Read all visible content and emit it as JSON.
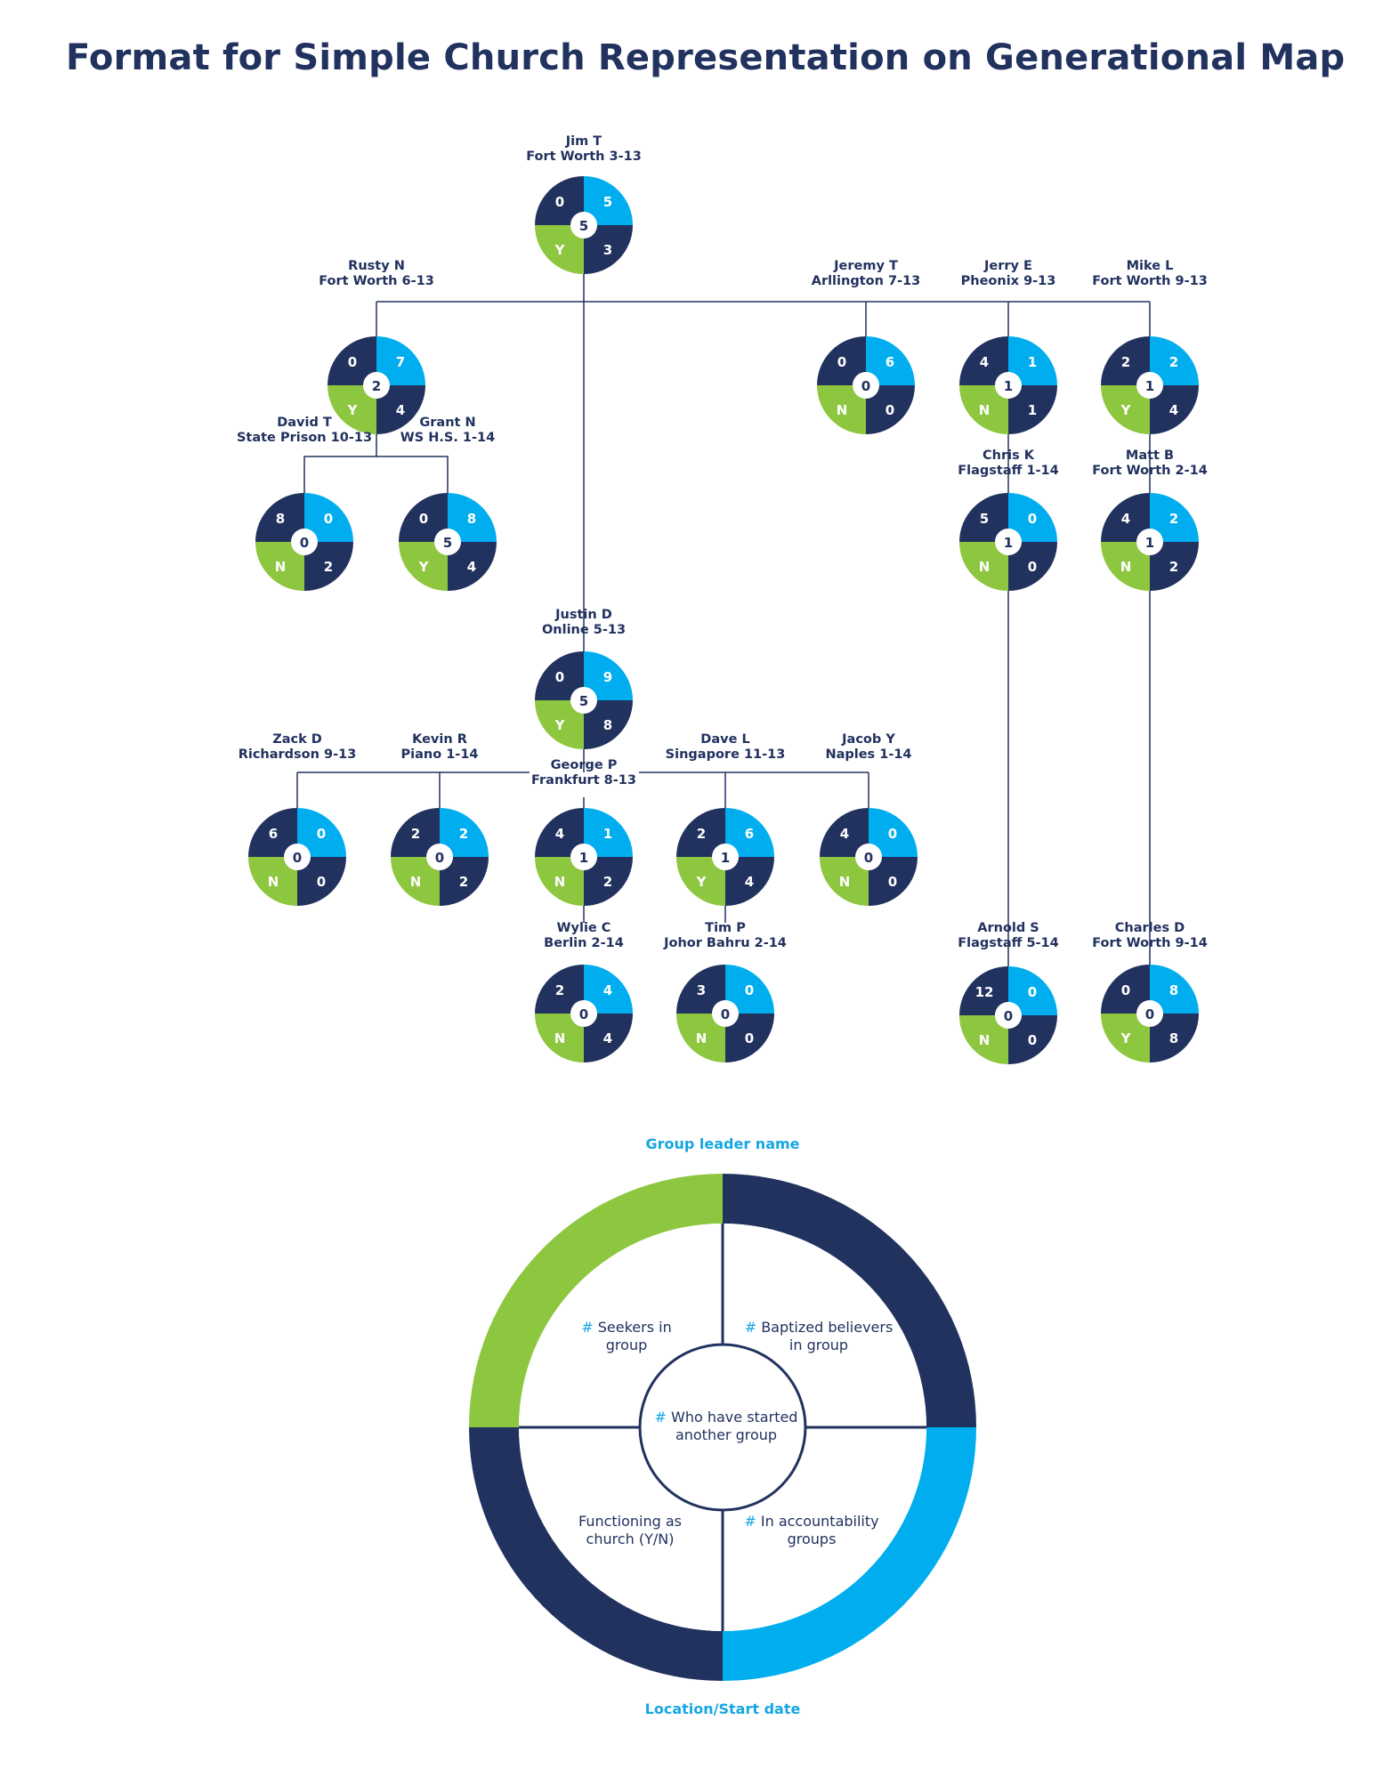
{
  "title": "Format for Simple Church Representation on Generational Map",
  "colors": {
    "navy": "#22325f",
    "light_blue": "#00aeef",
    "green": "#8dc63f",
    "white": "#ffffff",
    "caption_blue": "#16a6e2"
  },
  "nodes": [
    {
      "id": "jim-t",
      "name": "Jim T",
      "location": "Fort Worth 3-13",
      "seekers": "0",
      "baptized": "5",
      "church": "Y",
      "accountability": "3",
      "started": "5"
    },
    {
      "id": "rusty-n",
      "name": "Rusty N",
      "location": "Fort Worth 6-13",
      "seekers": "0",
      "baptized": "7",
      "church": "Y",
      "accountability": "4",
      "started": "2"
    },
    {
      "id": "jeremy-t",
      "name": "Jeremy T",
      "location": "Arllington 7-13",
      "seekers": "0",
      "baptized": "6",
      "church": "N",
      "accountability": "0",
      "started": "0"
    },
    {
      "id": "jerry-e",
      "name": "Jerry E",
      "location": "Pheonix 9-13",
      "seekers": "4",
      "baptized": "1",
      "church": "N",
      "accountability": "1",
      "started": "1"
    },
    {
      "id": "mike-l",
      "name": "Mike L",
      "location": "Fort Worth 9-13",
      "seekers": "2",
      "baptized": "2",
      "church": "Y",
      "accountability": "4",
      "started": "1"
    },
    {
      "id": "david-t",
      "name": "David T",
      "location": "State Prison 10-13",
      "seekers": "8",
      "baptized": "0",
      "church": "N",
      "accountability": "2",
      "started": "0"
    },
    {
      "id": "grant-n",
      "name": "Grant N",
      "location": "WS H.S. 1-14",
      "seekers": "0",
      "baptized": "8",
      "church": "Y",
      "accountability": "4",
      "started": "5"
    },
    {
      "id": "chris-k",
      "name": "Chris K",
      "location": "Flagstaff 1-14",
      "seekers": "5",
      "baptized": "0",
      "church": "N",
      "accountability": "0",
      "started": "1"
    },
    {
      "id": "matt-b",
      "name": "Matt B",
      "location": "Fort Worth 2-14",
      "seekers": "4",
      "baptized": "2",
      "church": "N",
      "accountability": "2",
      "started": "1"
    },
    {
      "id": "justin-d",
      "name": "Justin D",
      "location": "Online 5-13",
      "seekers": "0",
      "baptized": "9",
      "church": "Y",
      "accountability": "8",
      "started": "5"
    },
    {
      "id": "zack-d",
      "name": "Zack D",
      "location": "Richardson 9-13",
      "seekers": "6",
      "baptized": "0",
      "church": "N",
      "accountability": "0",
      "started": "0"
    },
    {
      "id": "kevin-r",
      "name": "Kevin R",
      "location": "Piano 1-14",
      "seekers": "2",
      "baptized": "2",
      "church": "N",
      "accountability": "2",
      "started": "0"
    },
    {
      "id": "george-p",
      "name": "George P",
      "location": "Frankfurt 8-13",
      "seekers": "4",
      "baptized": "1",
      "church": "N",
      "accountability": "2",
      "started": "1"
    },
    {
      "id": "dave-l",
      "name": "Dave L",
      "location": "Singapore 11-13",
      "seekers": "2",
      "baptized": "6",
      "church": "Y",
      "accountability": "4",
      "started": "1"
    },
    {
      "id": "jacob-y",
      "name": "Jacob Y",
      "location": "Naples 1-14",
      "seekers": "4",
      "baptized": "0",
      "church": "N",
      "accountability": "0",
      "started": "0"
    },
    {
      "id": "wylie-c",
      "name": "Wylie C",
      "location": "Berlin 2-14",
      "seekers": "2",
      "baptized": "4",
      "church": "N",
      "accountability": "4",
      "started": "0"
    },
    {
      "id": "tim-p",
      "name": "Tim P",
      "location": "Johor Bahru 2-14",
      "seekers": "3",
      "baptized": "0",
      "church": "N",
      "accountability": "0",
      "started": "0"
    },
    {
      "id": "arnold-s",
      "name": "Arnold S",
      "location": "Flagstaff 5-14",
      "seekers": "12",
      "baptized": "0",
      "church": "N",
      "accountability": "0",
      "started": "0"
    },
    {
      "id": "charles-d",
      "name": "Charles D",
      "location": "Fort Worth 9-14",
      "seekers": "0",
      "baptized": "8",
      "church": "Y",
      "accountability": "8",
      "started": "0"
    }
  ],
  "legend": {
    "top_caption": "Group leader name",
    "bottom_caption": "Location/Start date",
    "hash": "#",
    "seekers_line1": "Seekers in",
    "seekers_line2": "group",
    "baptized_line1": "Baptized believers",
    "baptized_line2": "in group",
    "started_line1": "Who have started",
    "started_line2": "another group",
    "church_line1": "Functioning as",
    "church_line2": "church (Y/N)",
    "accountability_line1": "In accountability",
    "accountability_line2": "groups"
  }
}
